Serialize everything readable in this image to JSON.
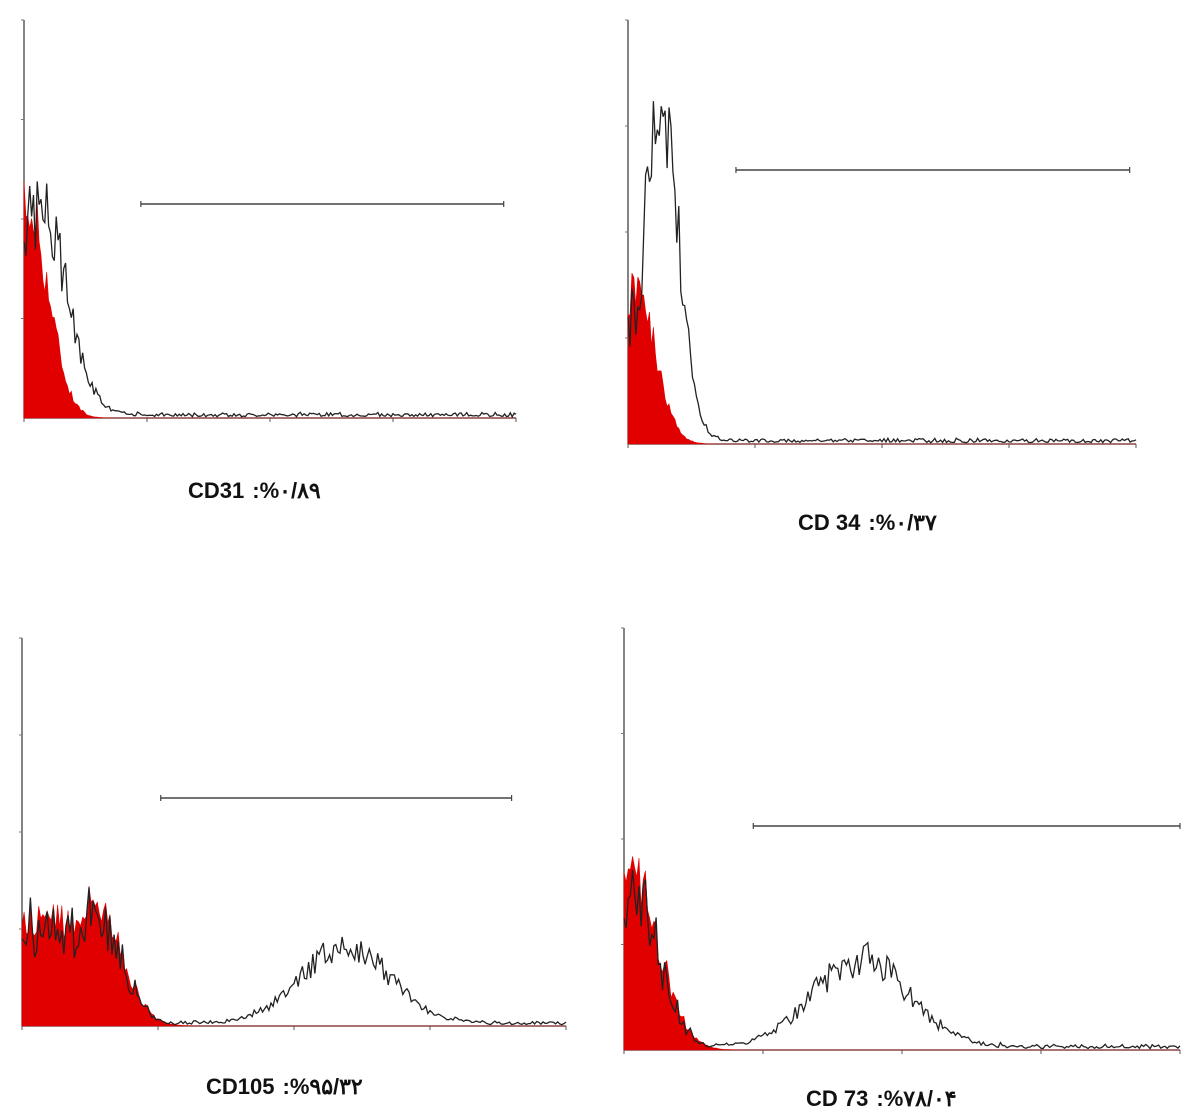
{
  "chart_data": [
    {
      "type": "area",
      "marker": "CD31",
      "positive_percent": "%۰/۸۹",
      "caption_separator": ":",
      "x_scale": "log",
      "x_range_decades": [
        0,
        4
      ],
      "ylim": [
        0,
        100
      ],
      "gate": {
        "from_decade": 0.95,
        "to_decade": 3.9
      },
      "control_peak": {
        "center_decade": 0.03,
        "width_decade": 0.17,
        "height": 53
      },
      "sample_peaks": [
        {
          "center_decade": 0.12,
          "width_decade": 0.22,
          "height": 52
        }
      ],
      "fill_color": "#e00000",
      "line_color": "#222222"
    },
    {
      "type": "area",
      "marker": "CD 34",
      "positive_percent": "%۰/۳۷",
      "caption_separator": ":",
      "x_scale": "log",
      "x_range_decades": [
        0,
        4
      ],
      "ylim": [
        0,
        100
      ],
      "gate": {
        "from_decade": 0.85,
        "to_decade": 3.95
      },
      "control_peak": {
        "center_decade": 0.05,
        "width_decade": 0.16,
        "height": 37
      },
      "sample_peaks": [
        {
          "center_decade": 0.26,
          "width_decade": 0.14,
          "height": 77
        }
      ],
      "fill_color": "#e00000",
      "line_color": "#222222"
    },
    {
      "type": "area",
      "marker": "CD105",
      "positive_percent": "%۹۵/۳۲",
      "caption_separator": ":",
      "x_scale": "log",
      "x_range_decades": [
        0,
        4
      ],
      "ylim": [
        0,
        100
      ],
      "gate": {
        "from_decade": 1.02,
        "to_decade": 3.6
      },
      "control_peak": {
        "center_decade": 0.52,
        "width_decade": 0.2,
        "height": 32
      },
      "sample_peaks": [
        {
          "center_decade": 2.38,
          "width_decade": 0.32,
          "height": 20
        }
      ],
      "fill_color": "#e00000",
      "line_color": "#222222"
    },
    {
      "type": "area",
      "marker": "CD 73",
      "positive_percent": "%۷۸/۰۴",
      "caption_separator": ":",
      "x_scale": "log",
      "x_range_decades": [
        0,
        4
      ],
      "ylim": [
        0,
        100
      ],
      "gate": {
        "from_decade": 0.93,
        "to_decade": 4.0
      },
      "control_peak": {
        "center_decade": 0.05,
        "width_decade": 0.2,
        "height": 42
      },
      "sample_peaks": [
        {
          "center_decade": 1.7,
          "width_decade": 0.34,
          "height": 21
        }
      ],
      "fill_color": "#e00000",
      "line_color": "#222222"
    }
  ]
}
